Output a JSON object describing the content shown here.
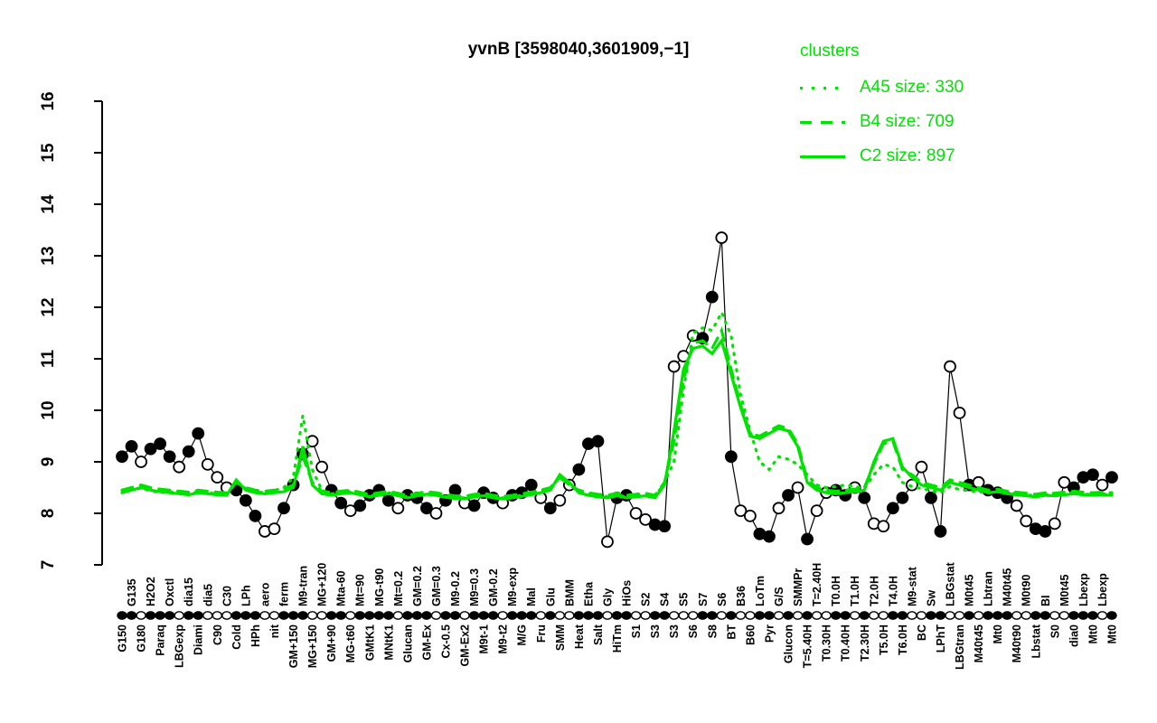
{
  "title": "yvnB [3598040,3601909,−1]",
  "colors": {
    "cluster_green": "#00e300",
    "gene_black": "#000000",
    "background": "#ffffff"
  },
  "legend": {
    "title": "clusters",
    "items": [
      {
        "label": "A45 size: 330",
        "style": "dotted"
      },
      {
        "label": "B4 size: 709",
        "style": "dashed"
      },
      {
        "label": "C2 size: 897",
        "style": "solid"
      }
    ]
  },
  "chart_data": {
    "type": "line",
    "title": "yvnB [3598040,3601909,−1]",
    "ylabel": "",
    "xlabel": "",
    "ylim": [
      7,
      16
    ],
    "yticks": [
      7,
      8,
      9,
      10,
      11,
      12,
      13,
      14,
      15,
      16
    ],
    "grid": false,
    "legend_position": "top-right",
    "conditions": [
      "G150",
      "G135",
      "G180",
      "H2O2",
      "Paraq",
      "Oxctl",
      "LBGexp",
      "dia15",
      "Diami",
      "dia5",
      "C90",
      "C30",
      "Cold",
      "LPh",
      "HPh",
      "aero",
      "nit",
      "ferm",
      "GM+150",
      "M9-tran",
      "MG+150",
      "MG+120",
      "GM+90",
      "Mta-60",
      "MG-t60",
      "Mt=90",
      "GMtK1",
      "MG-t90",
      "MNtK1",
      "Mt=0.2",
      "Glucan",
      "GM=0.2",
      "GM-Ex",
      "GM=0.3",
      "Cx-0.5",
      "M9-0.2",
      "GM-Ex2",
      "M9=0.3",
      "M9t-1",
      "GM-0.2",
      "M9-t2",
      "M9-exp",
      "M/G",
      "Mal",
      "Fru",
      "Glu",
      "SMM",
      "BMM",
      "Heat",
      "Etha",
      "Salt",
      "Gly",
      "HiTm",
      "HiOs",
      "S1",
      "S2",
      "S3",
      "S4",
      "S3",
      "S5",
      "S6",
      "S7",
      "S8",
      "S6",
      "BT",
      "B36",
      "B60",
      "LoTm",
      "Pyr",
      "G/S",
      "Glucon",
      "SMMPr",
      "T=5.40H",
      "T=2.40H",
      "T0.30H",
      "T0.0H",
      "T0.40H",
      "T1.0H",
      "T2.30H",
      "T2.0H",
      "T5.0H",
      "T4.0H",
      "T6.0H",
      "M9-stat",
      "BC",
      "Sw",
      "LPhT",
      "LBGstat",
      "LBGtran",
      "M0t45",
      "M40t45",
      "Lbtran",
      "Mt0",
      "M40t45",
      "M40t90",
      "M0t90",
      "Lbstat",
      "BI",
      "S0",
      "M0t45",
      "dia0",
      "Lbexp",
      "Mt0",
      "Lbexp",
      "Mt0"
    ],
    "label_rows": "btbtbtbtbtbtbtbtbtbtbtbtbtbtbtbtbtbtbtbtbtbtbtbtbtbtbtbtbtbtbtbtbtbtbtbtbtbtbtbtbtbtbtbtbtbtbtbtbtbtbtbtb",
    "gene_series": {
      "name": "yvnB",
      "values": [
        9.1,
        9.3,
        9.0,
        9.25,
        9.35,
        9.1,
        8.9,
        9.2,
        9.55,
        8.95,
        8.7,
        8.5,
        8.45,
        8.25,
        7.95,
        7.65,
        7.7,
        8.1,
        8.55,
        9.15,
        9.4,
        8.9,
        8.45,
        8.2,
        8.05,
        8.15,
        8.35,
        8.45,
        8.25,
        8.1,
        8.35,
        8.3,
        8.1,
        8.0,
        8.25,
        8.45,
        8.2,
        8.15,
        8.4,
        8.3,
        8.2,
        8.35,
        8.4,
        8.55,
        8.3,
        8.1,
        8.25,
        8.55,
        8.85,
        9.35,
        9.4,
        7.45,
        8.3,
        8.35,
        8.0,
        7.88,
        7.78,
        7.75,
        10.85,
        11.05,
        11.45,
        11.4,
        12.2,
        13.35,
        9.1,
        8.05,
        7.95,
        7.6,
        7.55,
        8.1,
        8.35,
        8.5,
        7.5,
        8.05,
        8.4,
        8.45,
        8.35,
        8.5,
        8.3,
        7.8,
        7.75,
        8.1,
        8.3,
        8.55,
        8.9,
        8.3,
        7.65,
        10.85,
        9.95,
        8.55,
        8.6,
        8.45,
        8.4,
        8.3,
        8.15,
        7.85,
        7.7,
        7.65,
        7.8,
        8.6,
        8.5,
        8.7,
        8.75,
        8.55,
        8.7
      ],
      "filled": [
        1,
        1,
        0,
        1,
        1,
        1,
        0,
        1,
        1,
        0,
        0,
        0,
        1,
        1,
        1,
        0,
        0,
        1,
        1,
        1,
        0,
        0,
        1,
        1,
        0,
        1,
        1,
        1,
        1,
        0,
        1,
        1,
        1,
        0,
        1,
        1,
        0,
        1,
        1,
        1,
        0,
        1,
        1,
        1,
        0,
        1,
        0,
        0,
        1,
        1,
        1,
        0,
        1,
        1,
        0,
        0,
        1,
        1,
        0,
        0,
        0,
        1,
        1,
        0,
        1,
        0,
        0,
        1,
        1,
        0,
        1,
        0,
        1,
        0,
        0,
        1,
        1,
        0,
        1,
        0,
        0,
        1,
        1,
        0,
        0,
        1,
        1,
        0,
        0,
        1,
        0,
        1,
        1,
        1,
        0,
        0,
        1,
        1,
        0,
        0,
        1,
        1,
        1,
        0,
        1
      ]
    },
    "cluster_series": [
      {
        "name": "A45",
        "size": 330,
        "style": "dotted",
        "values": [
          8.45,
          8.5,
          8.48,
          8.44,
          8.4,
          8.42,
          8.4,
          8.38,
          8.42,
          8.4,
          8.38,
          8.36,
          8.6,
          8.48,
          8.42,
          8.4,
          8.44,
          8.5,
          8.7,
          9.9,
          8.85,
          8.45,
          8.38,
          8.4,
          8.42,
          8.38,
          8.34,
          8.36,
          8.4,
          8.36,
          8.32,
          8.36,
          8.39,
          8.37,
          8.33,
          8.31,
          8.3,
          8.34,
          8.36,
          8.32,
          8.3,
          8.32,
          8.35,
          8.38,
          8.42,
          8.48,
          8.7,
          8.55,
          8.42,
          8.38,
          8.35,
          8.32,
          8.36,
          8.32,
          8.34,
          8.36,
          8.32,
          8.6,
          9.0,
          10.4,
          11.5,
          11.6,
          11.55,
          11.9,
          11.45,
          10.3,
          9.6,
          9.0,
          8.85,
          9.1,
          9.05,
          8.95,
          8.75,
          8.55,
          8.5,
          8.52,
          8.55,
          8.52,
          8.48,
          8.75,
          8.95,
          8.9,
          8.6,
          8.52,
          8.48,
          8.44,
          8.4,
          8.52,
          8.46,
          8.44,
          8.42,
          8.4,
          8.42,
          8.4,
          8.38,
          8.36,
          8.34,
          8.36,
          8.35,
          8.38,
          8.4,
          8.38,
          8.36,
          8.38,
          8.36
        ]
      },
      {
        "name": "B4",
        "size": 709,
        "style": "dashed",
        "values": [
          8.45,
          8.5,
          8.55,
          8.5,
          8.47,
          8.45,
          8.43,
          8.41,
          8.45,
          8.43,
          8.41,
          8.4,
          8.6,
          8.5,
          8.45,
          8.43,
          8.45,
          8.47,
          8.55,
          9.1,
          8.6,
          8.43,
          8.4,
          8.43,
          8.45,
          8.41,
          8.37,
          8.4,
          8.43,
          8.39,
          8.35,
          8.39,
          8.42,
          8.4,
          8.36,
          8.34,
          8.33,
          8.37,
          8.39,
          8.35,
          8.33,
          8.35,
          8.38,
          8.41,
          8.45,
          8.5,
          8.7,
          8.55,
          8.45,
          8.4,
          8.37,
          8.35,
          8.39,
          8.35,
          8.37,
          8.39,
          8.35,
          8.6,
          9.4,
          10.6,
          11.3,
          11.35,
          11.2,
          11.55,
          10.8,
          10.1,
          9.55,
          9.5,
          9.6,
          9.7,
          9.65,
          9.35,
          8.65,
          8.5,
          8.45,
          8.43,
          8.45,
          8.47,
          8.5,
          8.95,
          9.35,
          9.4,
          8.85,
          8.75,
          8.6,
          8.55,
          8.5,
          8.65,
          8.6,
          8.55,
          8.5,
          8.45,
          8.47,
          8.43,
          8.41,
          8.39,
          8.37,
          8.4,
          8.39,
          8.41,
          8.43,
          8.41,
          8.4,
          8.41,
          8.4
        ]
      },
      {
        "name": "C2",
        "size": 897,
        "style": "solid",
        "values": [
          8.4,
          8.45,
          8.5,
          8.45,
          8.42,
          8.4,
          8.38,
          8.36,
          8.4,
          8.38,
          8.36,
          8.35,
          8.65,
          8.45,
          8.4,
          8.38,
          8.4,
          8.42,
          8.5,
          9.3,
          8.55,
          8.38,
          8.35,
          8.38,
          8.4,
          8.36,
          8.32,
          8.35,
          8.38,
          8.34,
          8.3,
          8.34,
          8.37,
          8.35,
          8.31,
          8.29,
          8.28,
          8.32,
          8.34,
          8.3,
          8.28,
          8.3,
          8.33,
          8.36,
          8.4,
          8.45,
          8.75,
          8.6,
          8.4,
          8.35,
          8.32,
          8.3,
          8.34,
          8.3,
          8.32,
          8.34,
          8.3,
          8.55,
          9.6,
          10.8,
          11.2,
          11.25,
          11.1,
          11.35,
          10.7,
          10.05,
          9.5,
          9.45,
          9.55,
          9.65,
          9.6,
          9.3,
          8.6,
          8.45,
          8.4,
          8.38,
          8.4,
          8.42,
          8.45,
          9.0,
          9.4,
          9.45,
          8.9,
          8.7,
          8.55,
          8.5,
          8.45,
          8.6,
          8.55,
          8.5,
          8.45,
          8.4,
          8.42,
          8.38,
          8.36,
          8.34,
          8.32,
          8.35,
          8.34,
          8.36,
          8.38,
          8.36,
          8.35,
          8.36,
          8.35
        ]
      }
    ]
  }
}
